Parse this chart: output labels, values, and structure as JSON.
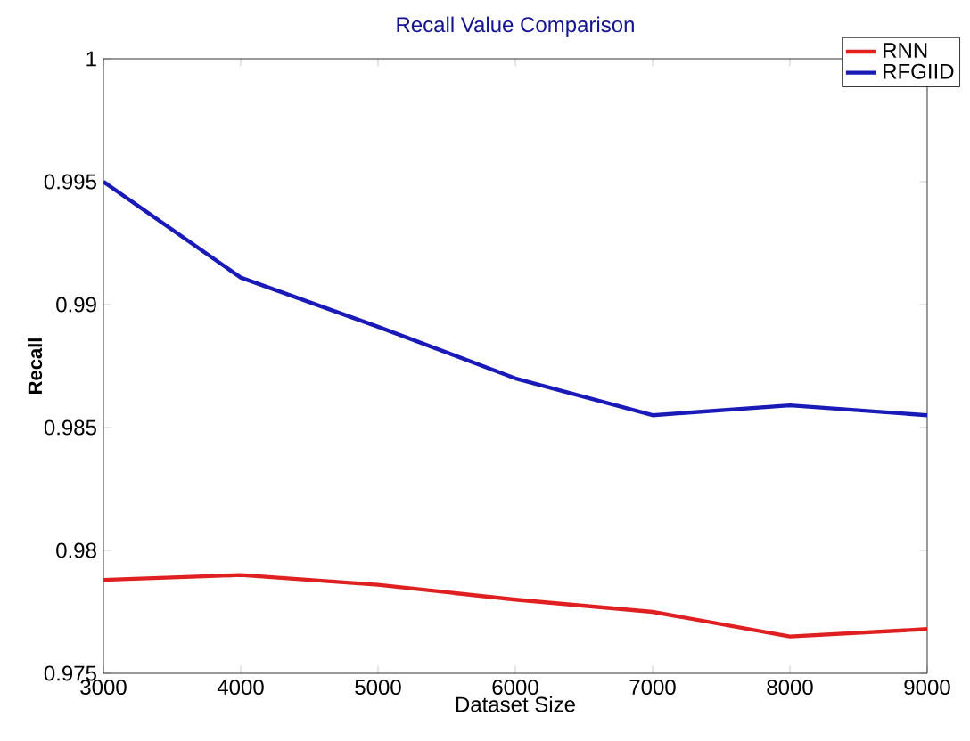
{
  "chart_data": {
    "type": "line",
    "title": "Recall Value Comparison",
    "xlabel": "Dataset Size",
    "ylabel": "Recall",
    "x": [
      3000,
      4000,
      5000,
      6000,
      7000,
      8000,
      9000
    ],
    "series": [
      {
        "name": "RNN",
        "color": "#e02020",
        "values": [
          0.9788,
          0.979,
          0.9786,
          0.978,
          0.9775,
          0.9765,
          0.9768
        ]
      },
      {
        "name": "RFGIID",
        "color": "#1a1ab8",
        "values": [
          0.995,
          0.9911,
          0.9891,
          0.987,
          0.9855,
          0.9859,
          0.9855
        ]
      }
    ],
    "xlim": [
      3000,
      9000
    ],
    "ylim": [
      0.975,
      1
    ],
    "xticks": [
      3000,
      4000,
      5000,
      6000,
      7000,
      8000,
      9000
    ],
    "yticks": [
      0.975,
      0.98,
      0.985,
      0.99,
      0.995,
      1
    ],
    "grid": false,
    "legend": "top right",
    "marker": "none",
    "line_style": "solid"
  }
}
